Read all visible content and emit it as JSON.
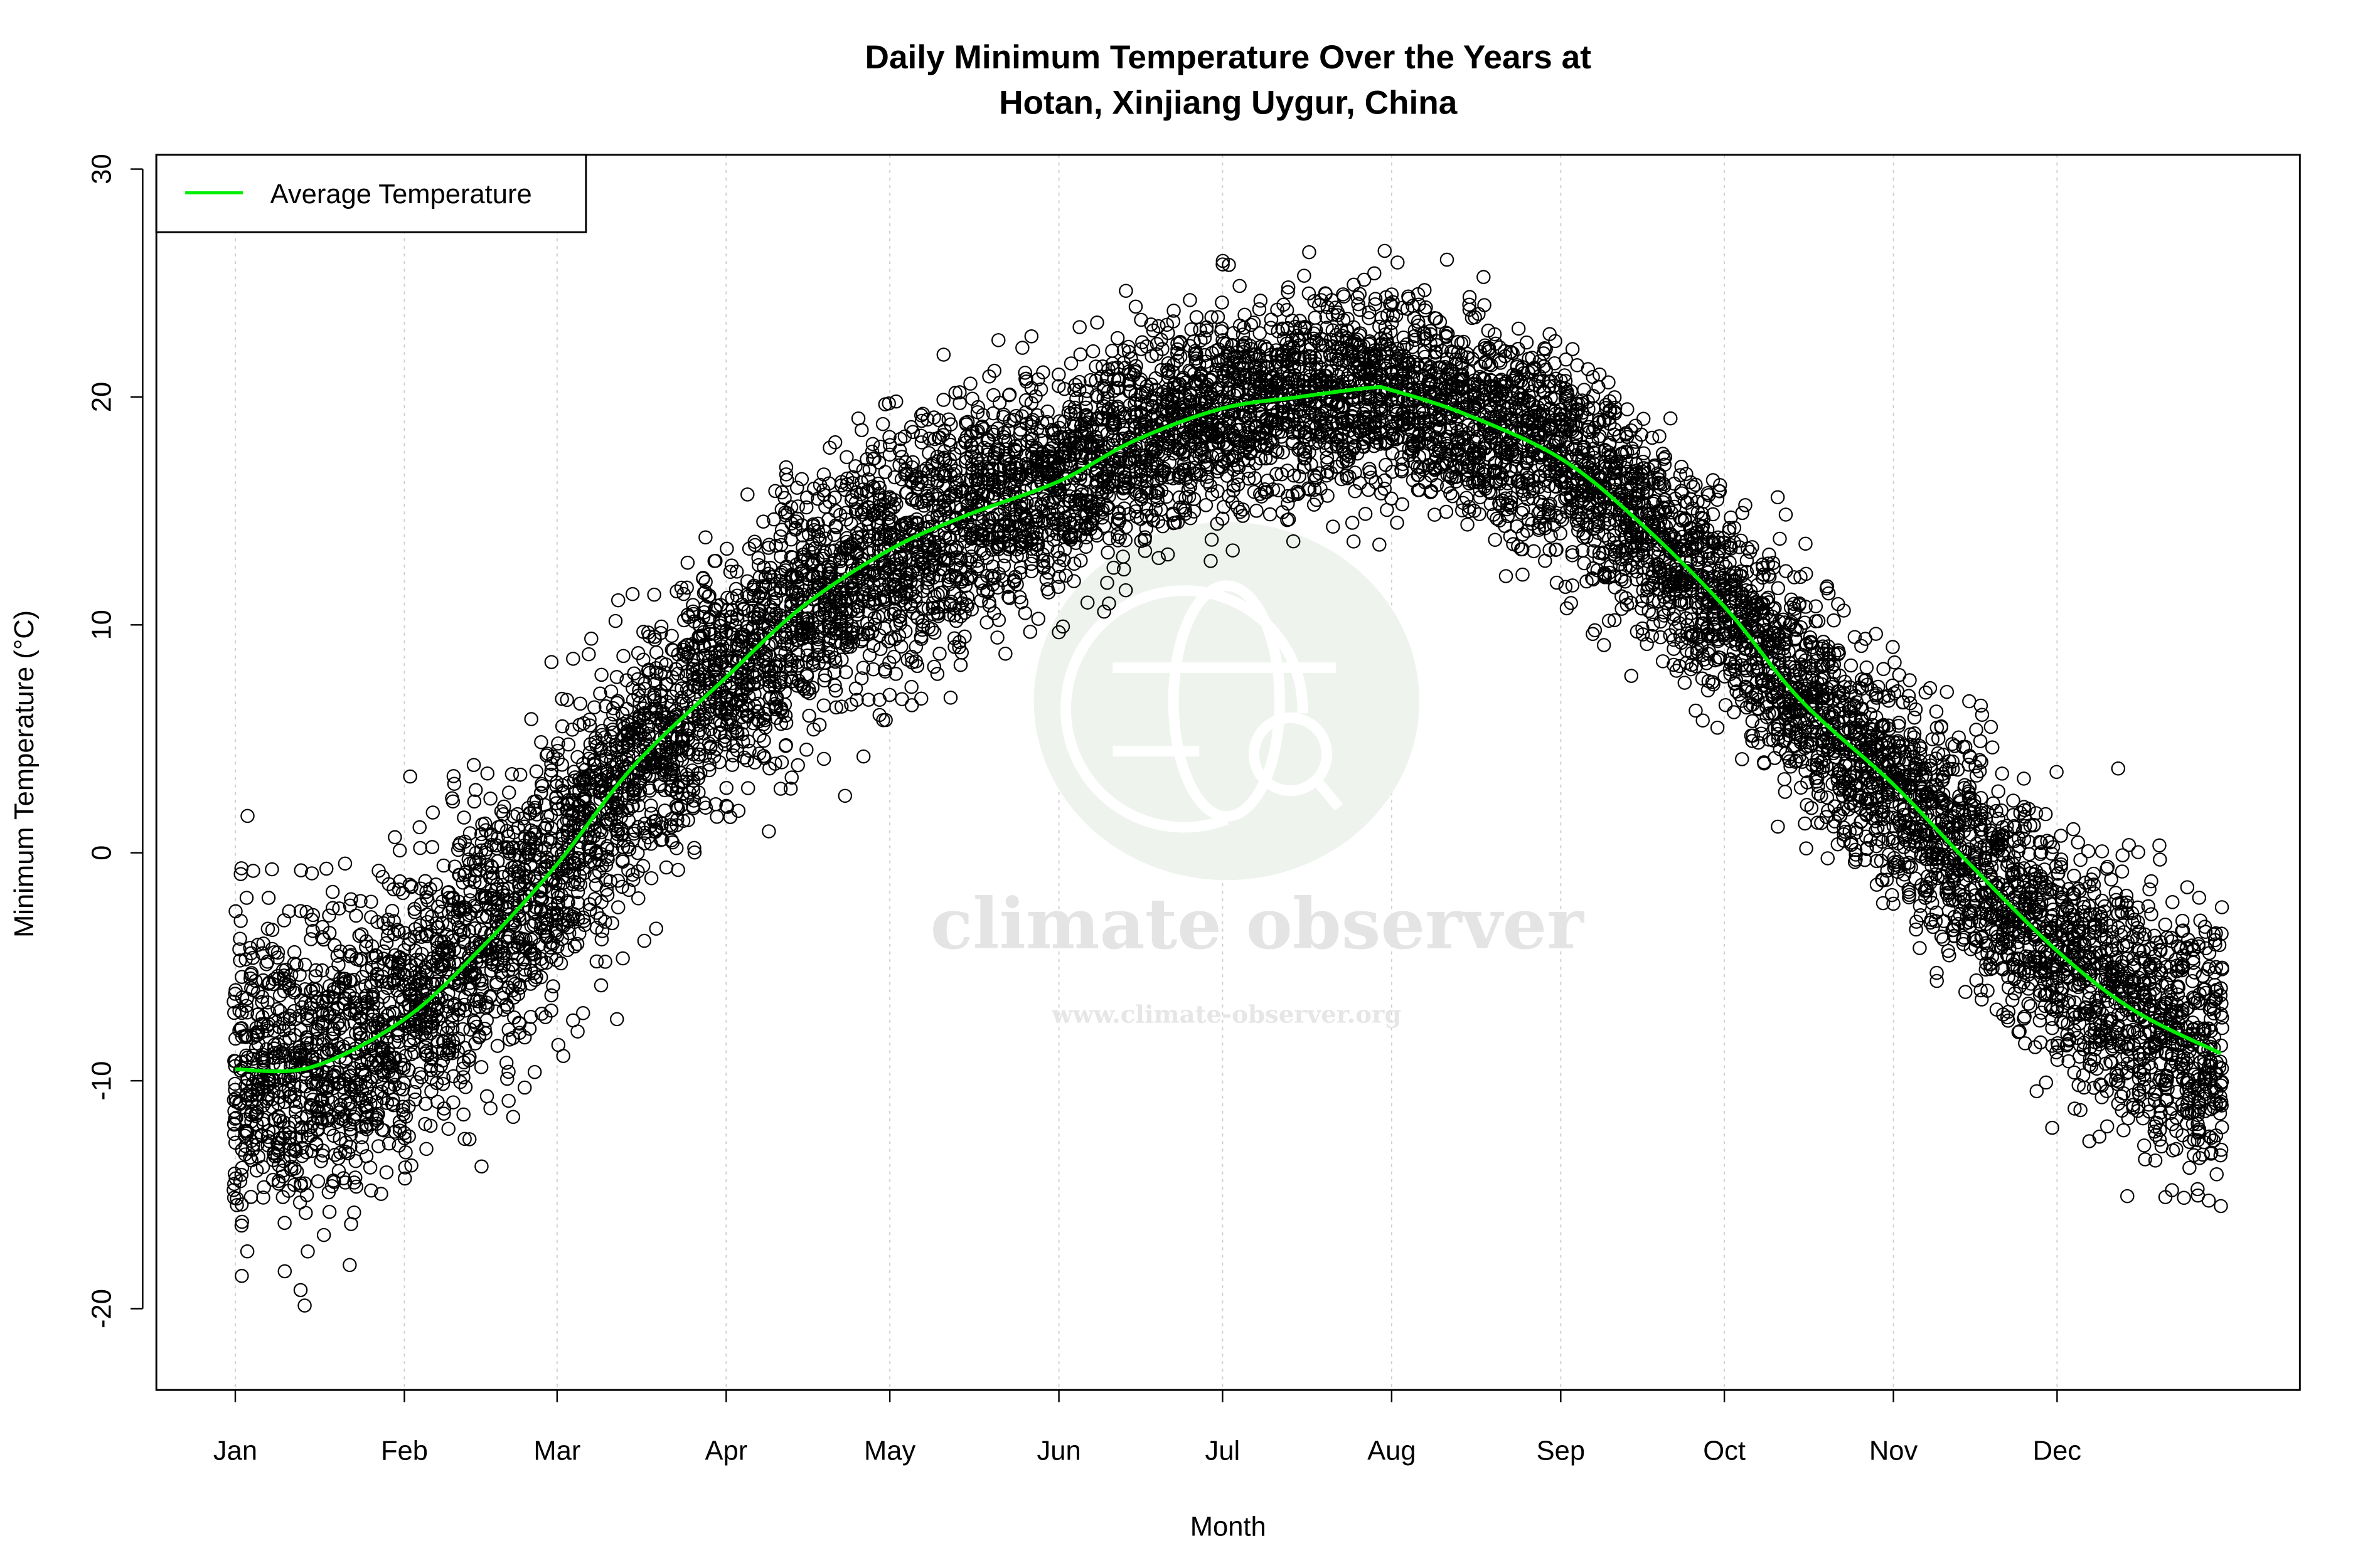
{
  "chart_data": {
    "type": "scatter",
    "title_lines": [
      "Daily Minimum Temperature Over the Years at",
      "Hotan, Xinjiang Uygur, China"
    ],
    "xlabel": "Month",
    "ylabel": "Minimum Temperature (°C)",
    "x_unit": "day of year",
    "xlim": [
      1,
      365
    ],
    "ylim": [
      -23.5,
      30.5
    ],
    "x_ticks": [
      {
        "label": "Jan",
        "day": 1
      },
      {
        "label": "Feb",
        "day": 32
      },
      {
        "label": "Mar",
        "day": 60
      },
      {
        "label": "Apr",
        "day": 91
      },
      {
        "label": "May",
        "day": 121
      },
      {
        "label": "Jun",
        "day": 152
      },
      {
        "label": "Jul",
        "day": 182
      },
      {
        "label": "Aug",
        "day": 213
      },
      {
        "label": "Sep",
        "day": 244
      },
      {
        "label": "Oct",
        "day": 274
      },
      {
        "label": "Nov",
        "day": 305
      },
      {
        "label": "Dec",
        "day": 335
      }
    ],
    "y_ticks": [
      -20,
      -10,
      0,
      10,
      20,
      30
    ],
    "grid": "vertical dotted at month ticks",
    "legend": {
      "position": "top-left",
      "entries": [
        {
          "label": "Average Temperature",
          "color": "#00ee00"
        }
      ]
    },
    "series": [
      {
        "name": "Average Temperature",
        "type": "line",
        "color": "#00ee00",
        "points": [
          [
            1,
            -9.5
          ],
          [
            15,
            -9.4
          ],
          [
            32,
            -7.3
          ],
          [
            46,
            -4.2
          ],
          [
            60,
            -0.5
          ],
          [
            74,
            3.8
          ],
          [
            91,
            7.7
          ],
          [
            105,
            10.8
          ],
          [
            121,
            13.3
          ],
          [
            135,
            14.8
          ],
          [
            152,
            16.3
          ],
          [
            166,
            18.1
          ],
          [
            182,
            19.5
          ],
          [
            196,
            20.0
          ],
          [
            209,
            20.4
          ],
          [
            213,
            20.3
          ],
          [
            227,
            19.2
          ],
          [
            244,
            17.3
          ],
          [
            258,
            14.6
          ],
          [
            274,
            10.8
          ],
          [
            288,
            6.7
          ],
          [
            305,
            3.0
          ],
          [
            319,
            -0.5
          ],
          [
            335,
            -4.3
          ],
          [
            349,
            -6.9
          ],
          [
            365,
            -8.8
          ]
        ]
      },
      {
        "name": "",
        "type": "scatter",
        "marker": "open circle",
        "color": "#000000",
        "observed_range_by_day": [
          [
            1,
            -21.5,
            5.2
          ],
          [
            15,
            -20,
            3.7
          ],
          [
            32,
            -19.5,
            4.3
          ],
          [
            60,
            -14,
            9
          ],
          [
            91,
            -4,
            15.5
          ],
          [
            121,
            0,
            22
          ],
          [
            152,
            7,
            24
          ],
          [
            182,
            11,
            27.5
          ],
          [
            213,
            12.5,
            28.5
          ],
          [
            244,
            8.5,
            25.5
          ],
          [
            274,
            1.5,
            18
          ],
          [
            305,
            -5,
            12.5
          ],
          [
            335,
            -14,
            5
          ],
          [
            365,
            -19.3,
            3.6
          ]
        ]
      }
    ]
  },
  "watermark": {
    "name": "climate observer",
    "url": "www.climate-observer.org"
  }
}
